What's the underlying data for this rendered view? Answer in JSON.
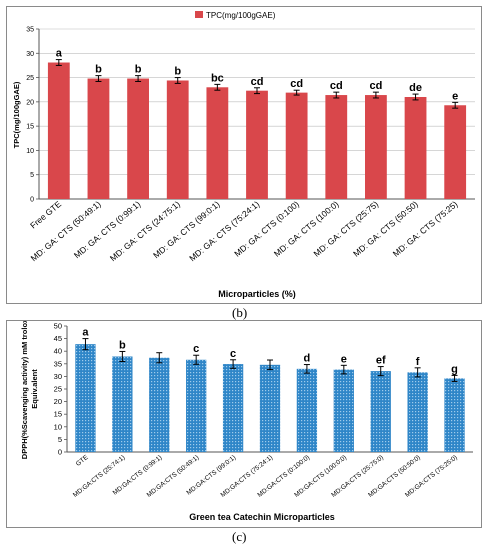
{
  "chart_data": [
    {
      "type": "bar",
      "panel_label": "(b)",
      "legend": "TPC(mg/100gGAE)",
      "legend_position": "top-center",
      "ylabel": "TPC(mg/100gGAE)",
      "xlabel": "Microparticles (%)",
      "ylim": [
        0,
        35
      ],
      "yticks": [
        0,
        5,
        10,
        15,
        20,
        25,
        30,
        35
      ],
      "grid": true,
      "color": "#d9474b",
      "categories": [
        "Free GTE",
        "MD: GA: CTS (50:49:1)",
        "MD: GA: CTS (0:99:1)",
        "MD: GA: CTS (24:75:1)",
        "MD: GA: CTS (99:0:1)",
        "MD: GA: CTS (75:24:1)",
        "MD: GA: CTS (0:100)",
        "MD: GA: CTS (100:0)",
        "MD: GA: CTS (25:75)",
        "MD: GA: CTS (50:50)",
        "MD: GA: CTS (75:25)"
      ],
      "values": [
        28.1,
        24.8,
        24.8,
        24.4,
        23.0,
        22.3,
        21.9,
        21.4,
        21.4,
        21.0,
        19.3
      ],
      "errors": [
        0.6,
        0.6,
        0.6,
        0.6,
        0.6,
        0.6,
        0.5,
        0.6,
        0.6,
        0.6,
        0.6
      ],
      "letters": [
        "a",
        "b",
        "b",
        "b",
        "bc",
        "cd",
        "cd",
        "cd",
        "cd",
        "de",
        "e"
      ]
    },
    {
      "type": "bar",
      "panel_label": "(c)",
      "ylabel": "DPPH(%Scavenging activity) mM trolox Equiv.alent",
      "xlabel": "Green tea Catechin Microparticles",
      "ylim": [
        0,
        50
      ],
      "yticks": [
        0,
        5,
        10,
        15,
        20,
        25,
        30,
        35,
        40,
        45,
        50
      ],
      "grid": false,
      "color": "#2f86c8",
      "categories": [
        "GTE",
        "MD:GA:CTS (25:74:1)",
        "MD:GA:CTS (0:99:1)",
        "MD:GA:CTS (50:49:1)",
        "MD:GA:CTS (99:0:1)",
        "MD:GA:CTS (75:24:1)",
        "MD:GA:CTS (0:100:0)",
        "MD:GA:CTS (100:0:0)",
        "MD:GA:CTS (25:75:0)",
        "MD:GA:CTS (50:50:0)",
        "MD:GA:CTS (75:25:0)"
      ],
      "values": [
        42.8,
        37.9,
        37.4,
        36.6,
        34.9,
        34.6,
        33.0,
        32.7,
        32.1,
        31.6,
        29.2
      ],
      "errors": [
        2.2,
        2.0,
        2.0,
        1.8,
        1.7,
        1.9,
        1.7,
        1.7,
        1.8,
        1.8,
        1.2
      ],
      "letters": [
        "a",
        "b",
        "",
        "c",
        "c",
        "",
        "d",
        "e",
        "ef",
        "f",
        "g"
      ]
    }
  ]
}
